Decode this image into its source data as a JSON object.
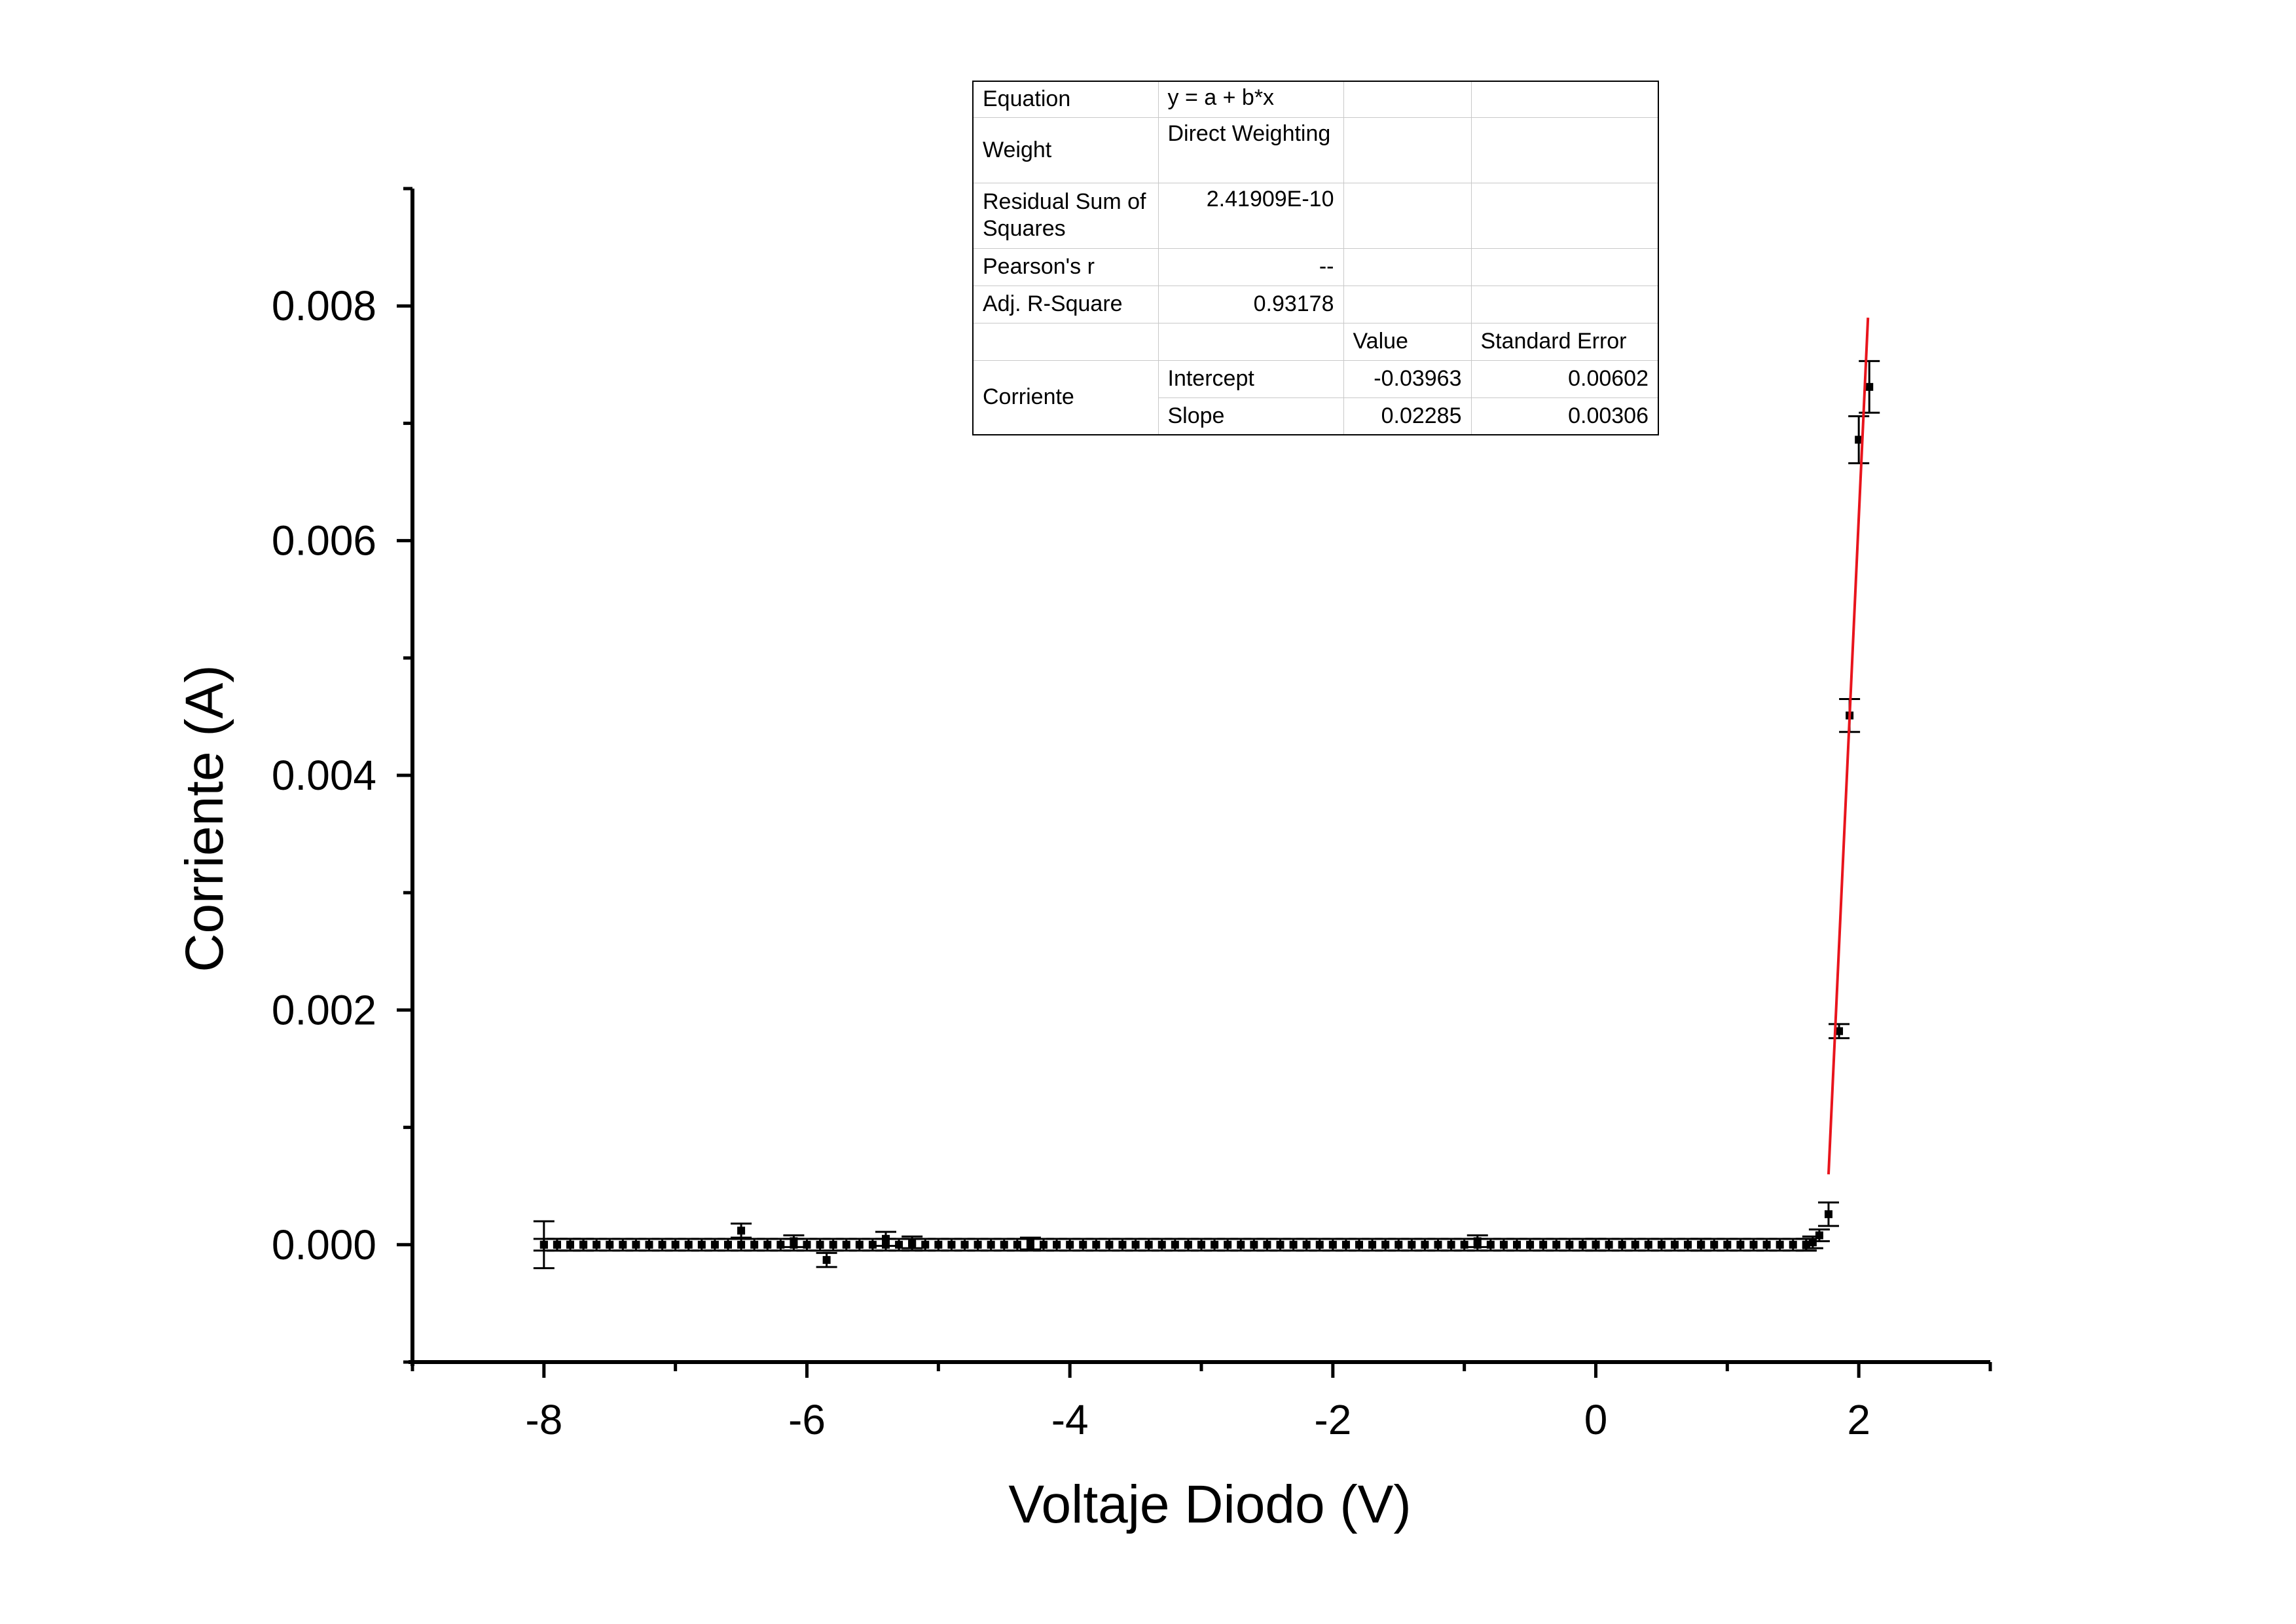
{
  "chart_data": {
    "type": "scatter",
    "title": "",
    "xlabel": "Voltaje Diodo (V)",
    "ylabel": "Corriente (A)",
    "xlim": [
      -9,
      3
    ],
    "ylim": [
      -0.001,
      0.009
    ],
    "x_ticks": [
      "-8",
      "-6",
      "-4",
      "-2",
      "0",
      "2"
    ],
    "y_ticks": [
      "0.000",
      "0.002",
      "0.004",
      "0.006",
      "0.008"
    ],
    "grid": false,
    "legend": "none",
    "colors": {
      "points": "#000000",
      "fit_line": "#e8141c"
    },
    "series": [
      {
        "points": [
          [
            -8.0,
            0.0,
            0.0002
          ],
          [
            -7.9,
            0.0,
            5e-05
          ],
          [
            -7.8,
            0.0,
            5e-05
          ],
          [
            -7.7,
            0.0,
            5e-05
          ],
          [
            -6.5,
            0.00012,
            6e-05
          ],
          [
            -6.1,
            3e-05,
            5e-05
          ],
          [
            -5.85,
            -0.00013,
            6e-05
          ],
          [
            -5.4,
            5e-05,
            6e-05
          ],
          [
            -5.2,
            2e-05,
            5e-05
          ],
          [
            -4.3,
            1e-05,
            5e-05
          ],
          [
            -0.9,
            3e-05,
            5e-05
          ],
          [
            0.0,
            0.0,
            5e-05
          ],
          [
            0.8,
            0.0,
            5e-05
          ],
          [
            1.6,
            0.0,
            5e-05
          ],
          [
            1.65,
            2e-05,
            5e-05
          ],
          [
            1.7,
            8e-05,
            5e-05
          ],
          [
            1.77,
            0.00026,
            0.0001
          ],
          [
            1.85,
            0.00182,
            6e-05
          ],
          [
            1.93,
            0.00451,
            0.00014
          ],
          [
            2.0,
            0.00686,
            0.0002
          ],
          [
            2.08,
            0.00731,
            0.00022
          ]
        ],
        "baseline": {
          "x_start": -8.0,
          "x_end": 1.65,
          "y": 0.0,
          "step": 0.1
        }
      }
    ],
    "fit_line": {
      "x_start": 1.77,
      "x_end": 2.07,
      "y_start": 0.0006,
      "y_end": 0.0079
    }
  },
  "fit_table": {
    "rows": [
      {
        "label": "Equation",
        "value": "y = a + b*x"
      },
      {
        "label": "Weight",
        "value": "Direct Weighting"
      },
      {
        "label": "Residual Sum of Squares",
        "value": "2.41909E-10"
      },
      {
        "label": "Pearson's r",
        "value": "--"
      },
      {
        "label": "Adj. R-Square",
        "value": "0.93178"
      }
    ],
    "header": {
      "value": "Value",
      "error": "Standard Error"
    },
    "group": "Corriente",
    "params": [
      {
        "name": "Intercept",
        "value": "-0.03963",
        "error": "0.00602"
      },
      {
        "name": "Slope",
        "value": "0.02285",
        "error": "0.00306"
      }
    ]
  }
}
